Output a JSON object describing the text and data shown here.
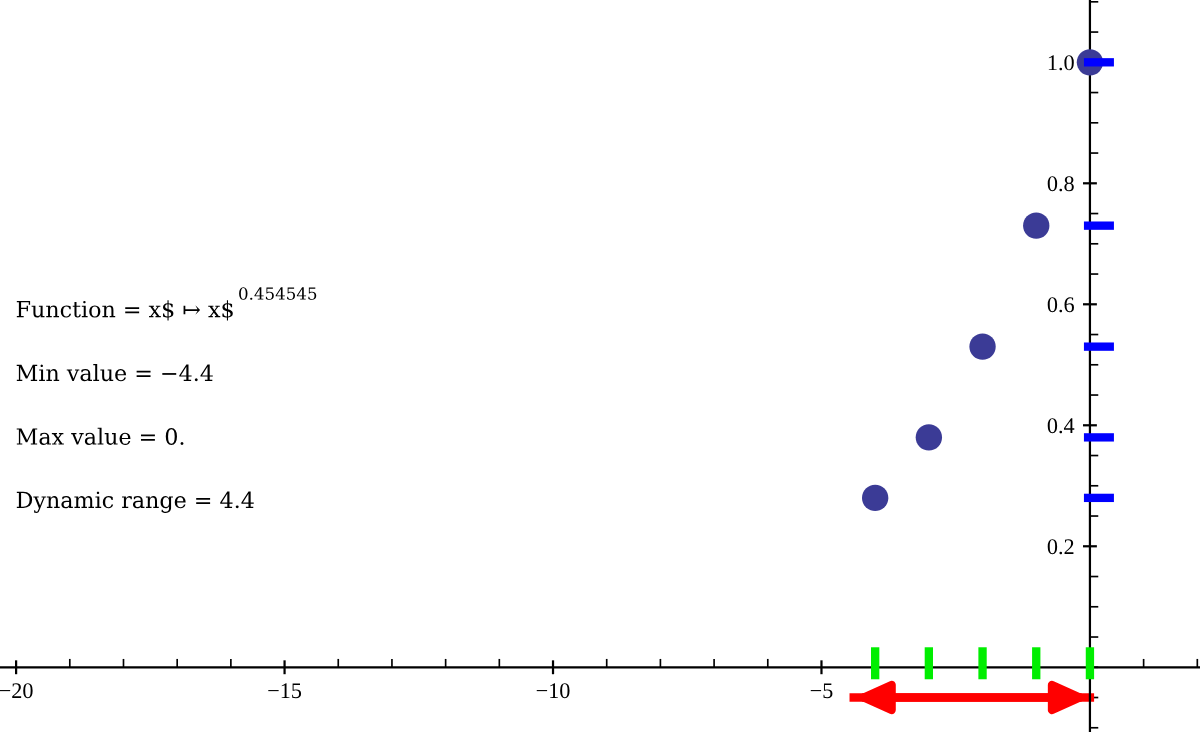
{
  "chart_data": {
    "type": "scatter",
    "series": [
      {
        "x": [
          -4,
          -3,
          -2,
          -1,
          0
        ],
        "values": [
          0.28,
          0.38,
          0.53,
          0.73,
          1.0
        ],
        "color": "#3b3b96",
        "marker": "circle"
      },
      {
        "type": "line",
        "x": [
          -4.4,
          0
        ],
        "values": [
          -0.05,
          -0.05
        ],
        "color": "#ff0000",
        "line_style": "solid"
      }
    ],
    "xlim": [
      -20.3,
      2.05
    ],
    "ylim": [
      -0.107,
      1.103
    ],
    "xticks": [
      -20,
      -15,
      -10,
      -5
    ],
    "yticks": [
      0.2,
      0.4,
      0.6,
      0.8,
      {
        "value": 1.0,
        "label": "1.0"
      }
    ],
    "grid": false,
    "legend": false,
    "annotations": [
      "Function = x$ ↦ x$$^{0.454545}$",
      "Min value = −4.4",
      "Max value = 0.",
      "Dynamic range = 4.4"
    ]
  }
}
